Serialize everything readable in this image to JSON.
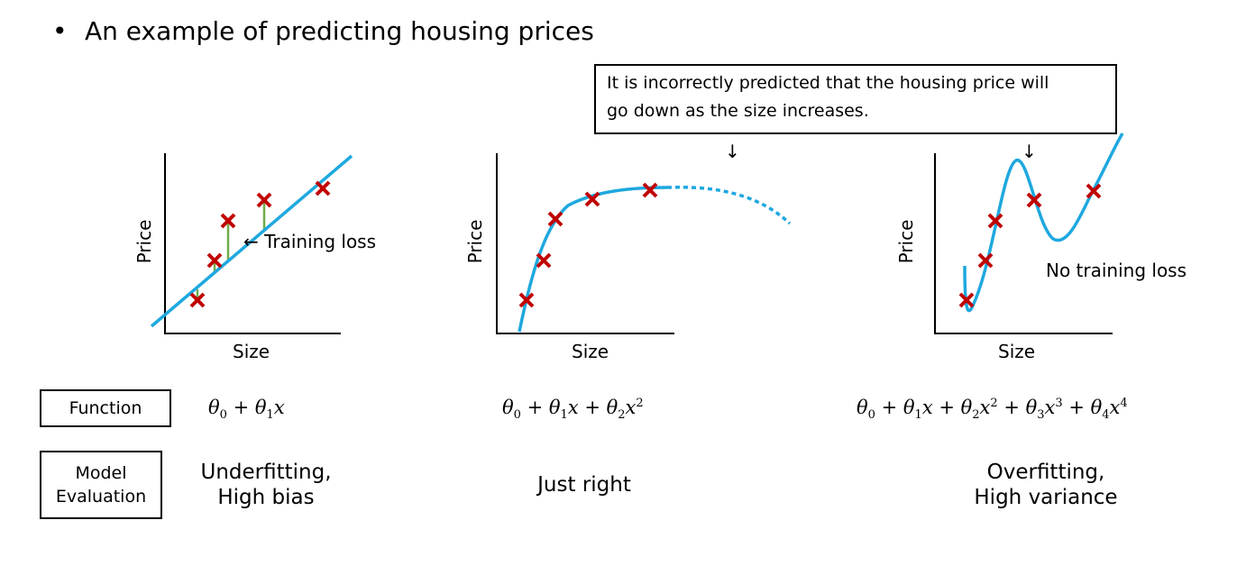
{
  "title": "An example of predicting housing prices",
  "bullet": "•",
  "callout": {
    "line1": "It is incorrectly predicted that the housing price will",
    "line2": "go down as the size increases."
  },
  "arrow_symbol": "↓",
  "plots": [
    {
      "xlabel": "Size",
      "ylabel": "Price",
      "annotation": "← Training loss",
      "function_parts": [
        "θ",
        "0",
        " + θ",
        "1",
        "x"
      ],
      "evaluation": [
        "Underfitting,",
        "High bias"
      ]
    },
    {
      "xlabel": "Size",
      "ylabel": "Price",
      "function_parts": [
        "θ",
        "0",
        " + θ",
        "1",
        "x + θ",
        "2",
        "x",
        "2"
      ],
      "evaluation": [
        "Just right"
      ]
    },
    {
      "xlabel": "Size",
      "ylabel": "Price",
      "annotation": "No training loss",
      "function_parts": [
        "θ",
        "0",
        " + θ",
        "1",
        "x + θ",
        "2",
        "x",
        "2",
        " + θ",
        "3",
        "x",
        "3",
        " + θ",
        "4",
        "x",
        "4"
      ],
      "evaluation": [
        "Overfitting,",
        "High variance"
      ]
    }
  ],
  "row_labels": {
    "function": "Function",
    "model_evaluation_line1": "Model",
    "model_evaluation_line2": "Evaluation"
  },
  "colors": {
    "curve": "#1ea8df",
    "data_point": "#c00000",
    "training_loss": "#70ad47"
  }
}
